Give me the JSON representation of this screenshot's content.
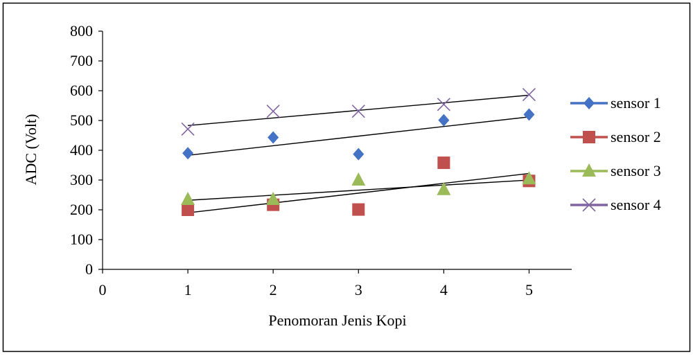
{
  "chart_data": {
    "type": "scatter",
    "title": "",
    "xlabel": "Penomoran Jenis Kopi",
    "ylabel": "ADC (Volt)",
    "xlim": [
      0,
      5.5
    ],
    "ylim": [
      0,
      800
    ],
    "x_ticks": [
      0,
      1,
      2,
      3,
      4,
      5
    ],
    "y_ticks": [
      0,
      100,
      200,
      300,
      400,
      500,
      600,
      700,
      800
    ],
    "grid": false,
    "legend_position": "right",
    "trendlines": true,
    "series": [
      {
        "name": "sensor 1",
        "marker": "diamond",
        "color": "#4472C4",
        "x": [
          1,
          2,
          3,
          4,
          5
        ],
        "y": [
          390,
          443,
          387,
          501,
          520
        ],
        "trend": [
          [
            1,
            383
          ],
          [
            5,
            512
          ]
        ]
      },
      {
        "name": "sensor 2",
        "marker": "square",
        "color": "#C0504D",
        "x": [
          1,
          2,
          3,
          4,
          5
        ],
        "y": [
          200,
          217,
          201,
          358,
          297
        ],
        "trend": [
          [
            1,
            190
          ],
          [
            5,
            322
          ]
        ]
      },
      {
        "name": "sensor 3",
        "marker": "triangle",
        "color": "#9BBB59",
        "x": [
          1,
          2,
          3,
          4,
          5
        ],
        "y": [
          235,
          235,
          300,
          268,
          304
        ],
        "trend": [
          [
            1,
            232
          ],
          [
            5,
            300
          ]
        ]
      },
      {
        "name": "sensor 4",
        "marker": "x",
        "color": "#8064A2",
        "x": [
          1,
          2,
          3,
          4,
          5
        ],
        "y": [
          471,
          531,
          531,
          554,
          587
        ],
        "trend": [
          [
            1,
            483
          ],
          [
            5,
            585
          ]
        ]
      }
    ]
  }
}
